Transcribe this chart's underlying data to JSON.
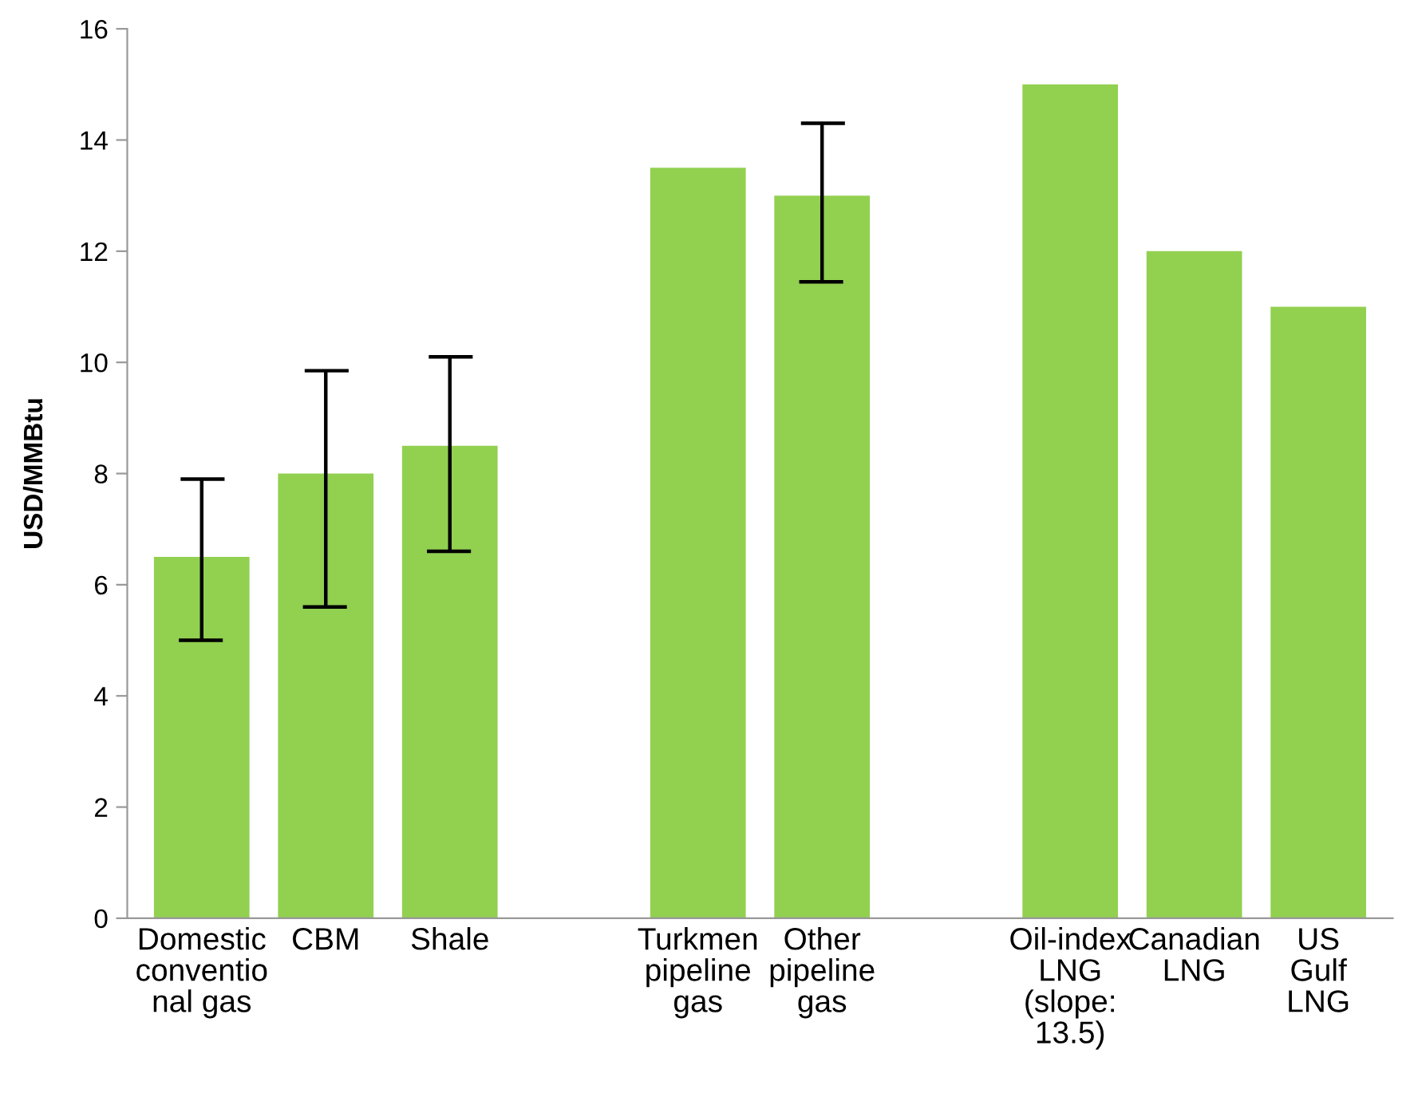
{
  "chart_data": {
    "type": "bar",
    "ylabel": "USD/MMBtu",
    "categories": [
      "Domestic\nconventio\nnal gas",
      "CBM",
      "Shale",
      null,
      "Turkmen\npipeline\ngas",
      "Other\npipeline\ngas",
      null,
      "Oil-index\nLNG\n(slope:\n13.5)",
      "Canadian\nLNG",
      "US\nGulf\nLNG"
    ],
    "values": [
      6.5,
      8,
      8.5,
      null,
      13.5,
      13,
      null,
      15,
      12,
      11
    ],
    "errors": [
      [
        5.0,
        7.9
      ],
      [
        5.6,
        9.85
      ],
      [
        6.6,
        10.1
      ],
      null,
      null,
      [
        11.45,
        14.3
      ],
      null,
      null,
      null,
      null
    ],
    "color": "#92d050",
    "ylim": [
      0,
      16
    ],
    "yticks": [
      0,
      2,
      4,
      6,
      8,
      10,
      12,
      14,
      16
    ],
    "grid": false,
    "legend": false
  }
}
